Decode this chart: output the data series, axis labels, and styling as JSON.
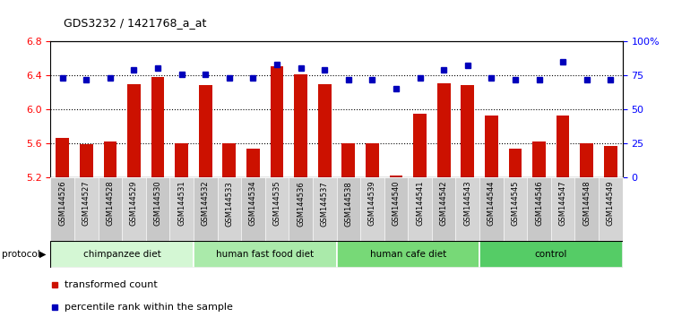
{
  "title": "GDS3232 / 1421768_a_at",
  "samples": [
    "GSM144526",
    "GSM144527",
    "GSM144528",
    "GSM144529",
    "GSM144530",
    "GSM144531",
    "GSM144532",
    "GSM144533",
    "GSM144534",
    "GSM144535",
    "GSM144536",
    "GSM144537",
    "GSM144538",
    "GSM144539",
    "GSM144540",
    "GSM144541",
    "GSM144542",
    "GSM144543",
    "GSM144544",
    "GSM144545",
    "GSM144546",
    "GSM144547",
    "GSM144548",
    "GSM144549"
  ],
  "bar_values": [
    5.66,
    5.59,
    5.62,
    6.3,
    6.38,
    5.6,
    6.28,
    5.6,
    5.54,
    6.51,
    6.41,
    6.3,
    5.6,
    5.6,
    5.22,
    5.95,
    6.31,
    6.28,
    5.93,
    5.54,
    5.62,
    5.93,
    5.6,
    5.57
  ],
  "blue_values": [
    73,
    72,
    73,
    79,
    80,
    76,
    76,
    73,
    73,
    83,
    80,
    79,
    72,
    72,
    65,
    73,
    79,
    82,
    73,
    72,
    72,
    85,
    72,
    72
  ],
  "groups": [
    {
      "label": "chimpanzee diet",
      "start": 0,
      "end": 6,
      "color": "#d4f7d4"
    },
    {
      "label": "human fast food diet",
      "start": 6,
      "end": 12,
      "color": "#aaeaaa"
    },
    {
      "label": "human cafe diet",
      "start": 12,
      "end": 18,
      "color": "#77d977"
    },
    {
      "label": "control",
      "start": 18,
      "end": 24,
      "color": "#55cc66"
    }
  ],
  "ylim_left": [
    5.2,
    6.8
  ],
  "ylim_right": [
    0,
    100
  ],
  "yticks_left": [
    5.2,
    5.6,
    6.0,
    6.4,
    6.8
  ],
  "yticks_right": [
    0,
    25,
    50,
    75,
    100
  ],
  "ytick_labels_right": [
    "0",
    "25",
    "50",
    "75",
    "100%"
  ],
  "bar_color": "#cc1100",
  "dot_color": "#0000bb",
  "bar_bottom": 5.2,
  "legend_items": [
    {
      "label": "transformed count",
      "color": "#cc1100"
    },
    {
      "label": "percentile rank within the sample",
      "color": "#0000bb"
    }
  ],
  "protocol_label": "protocol"
}
